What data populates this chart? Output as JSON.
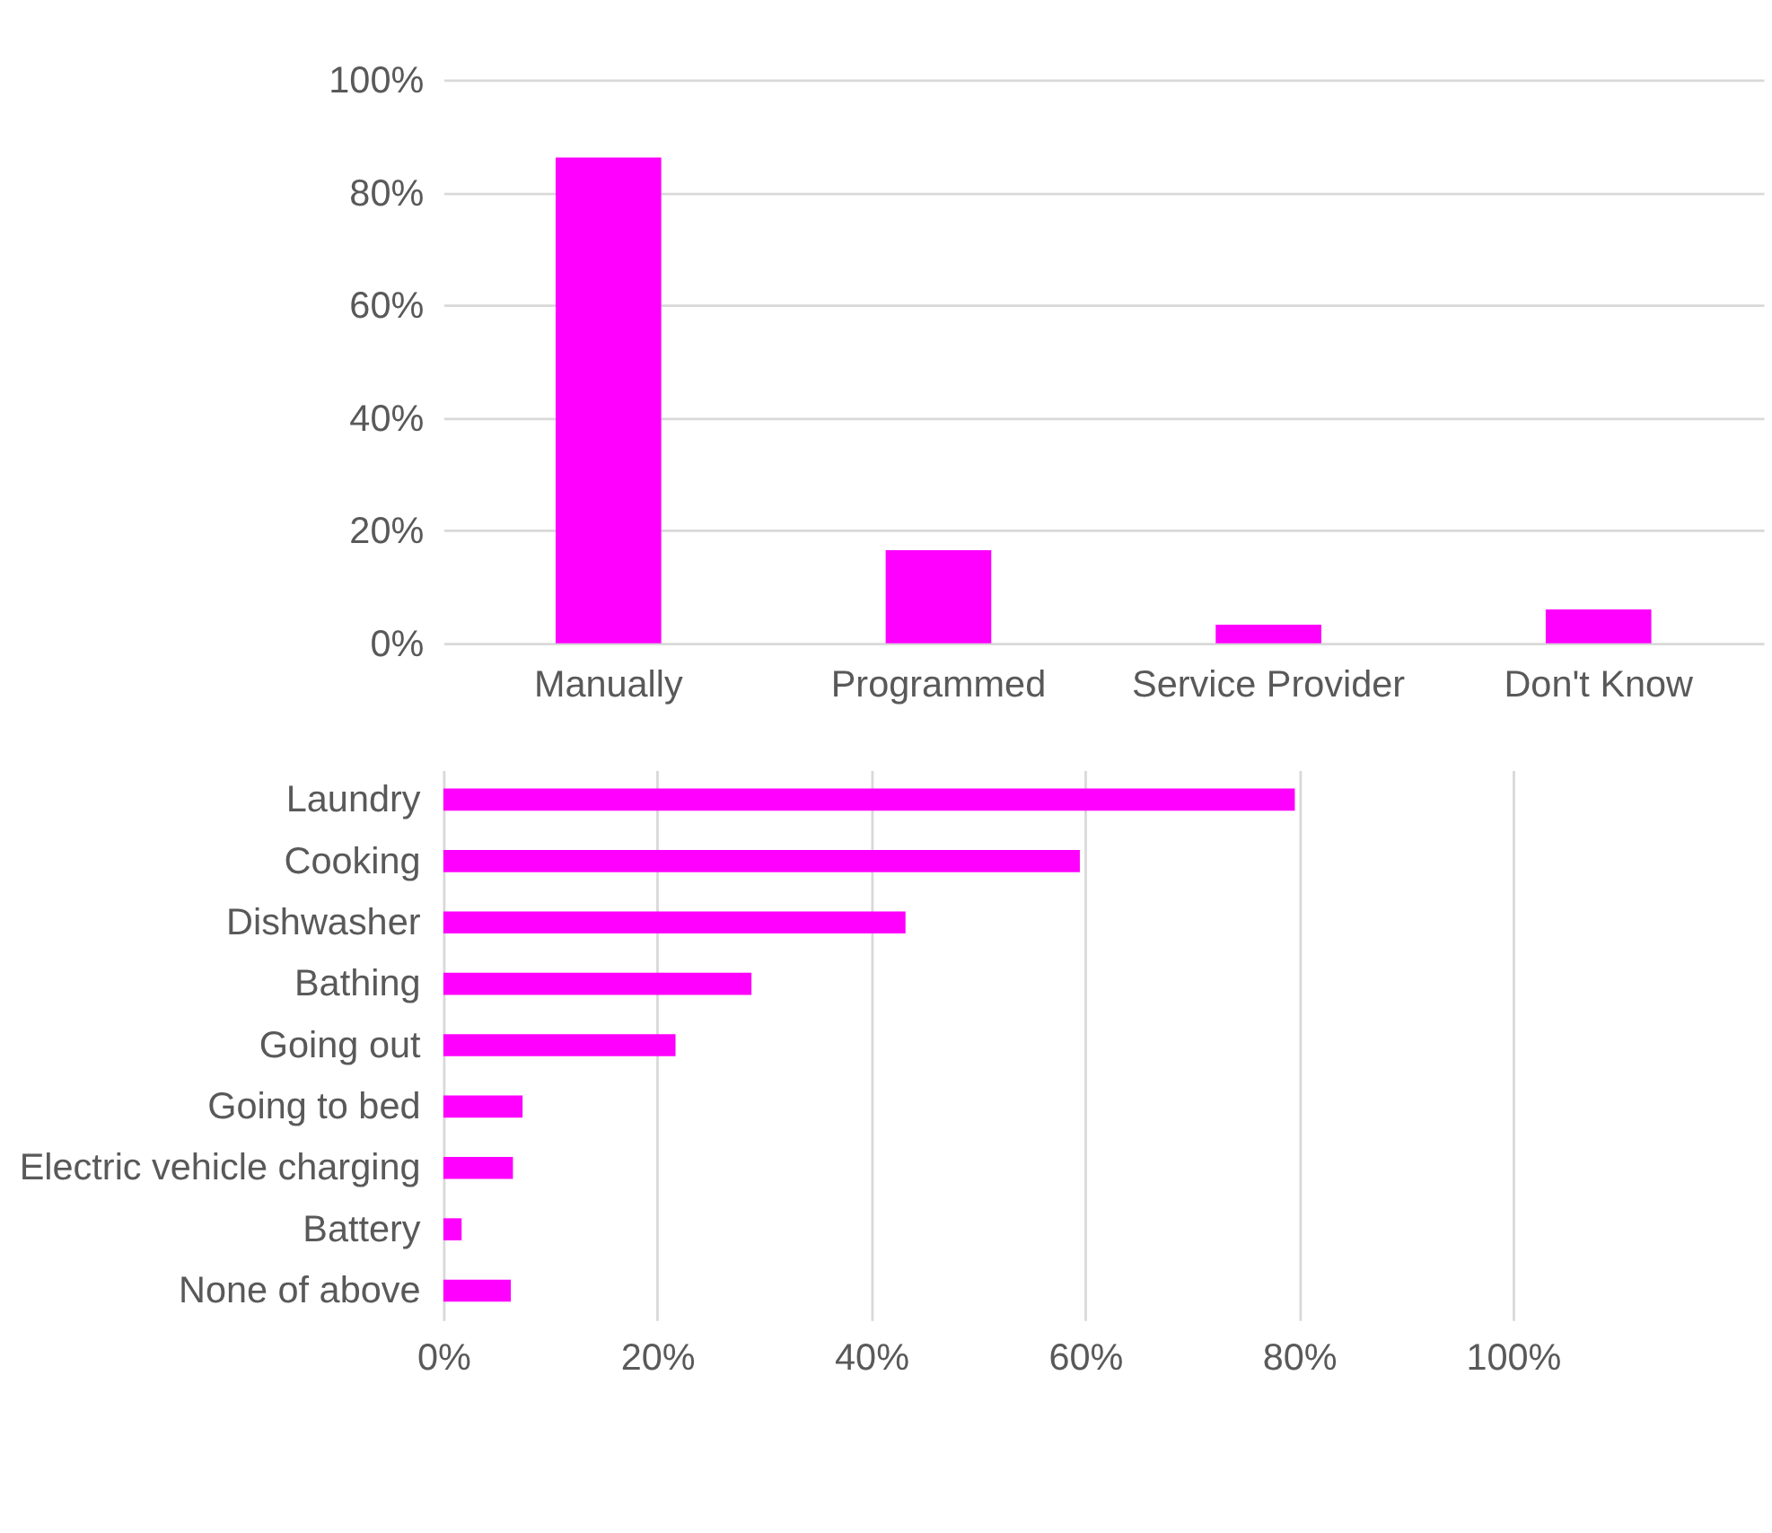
{
  "chart_data": [
    {
      "type": "bar",
      "categories": [
        "Manually",
        "Programmed",
        "Service Provider",
        "Don't Know"
      ],
      "values": [
        86.2,
        16.5,
        3.3,
        6
      ],
      "color": "#ff00ff",
      "ylim": [
        0,
        100
      ],
      "yticks": [
        {
          "value": 0,
          "label": "0%"
        },
        {
          "value": 20,
          "label": "20%"
        },
        {
          "value": 40,
          "label": "40%"
        },
        {
          "value": 60,
          "label": "60%"
        },
        {
          "value": 80,
          "label": "80%"
        },
        {
          "value": 100,
          "label": "100%"
        }
      ],
      "grid": "y"
    },
    {
      "type": "bar",
      "orientation": "horizontal",
      "categories": [
        "Laundry",
        "Cooking",
        "Dishwasher",
        "Bathing",
        "Going out",
        "Going to bed",
        "Electric vehicle charging",
        "Battery",
        "None of above"
      ],
      "values": [
        79.6,
        59.5,
        43.2,
        28.8,
        21.7,
        7.4,
        6.5,
        1.7,
        6.3
      ],
      "color": "#ff00ff",
      "xlim": [
        0,
        100
      ],
      "xticks": [
        {
          "value": 0,
          "label": "0%"
        },
        {
          "value": 20,
          "label": "20%"
        },
        {
          "value": 40,
          "label": "40%"
        },
        {
          "value": 60,
          "label": "60%"
        },
        {
          "value": 80,
          "label": "80%"
        },
        {
          "value": 100,
          "label": "100%"
        }
      ],
      "grid": "x"
    }
  ]
}
